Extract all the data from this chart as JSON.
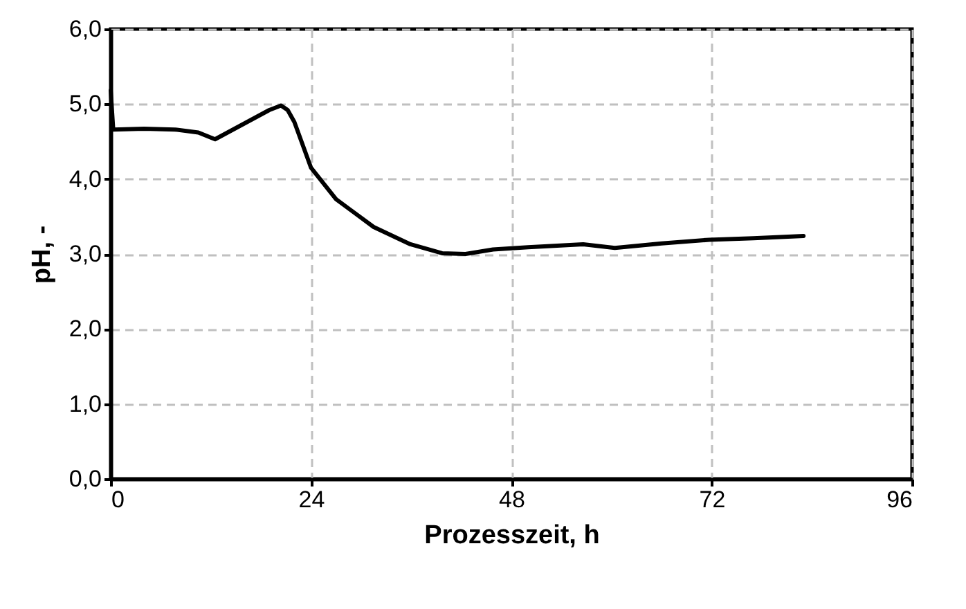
{
  "chart_data": {
    "type": "line",
    "xlabel": "Prozesszeit, h",
    "ylabel": "pH, -",
    "x": [
      0,
      0.3,
      4,
      7.7,
      10.5,
      12.5,
      15,
      17,
      19,
      20.4,
      21.2,
      22,
      24,
      27,
      31.5,
      35.9,
      39.7,
      42.5,
      45.8,
      50,
      56.6,
      60.4,
      66,
      71.7,
      77,
      83
    ],
    "series": [
      {
        "color": "#000000",
        "values": [
          5.18,
          4.66,
          4.67,
          4.66,
          4.62,
          4.53,
          4.68,
          4.8,
          4.92,
          4.98,
          4.92,
          4.76,
          4.15,
          3.73,
          3.36,
          3.13,
          3.01,
          3.0,
          3.06,
          3.09,
          3.13,
          3.08,
          3.14,
          3.19,
          3.21,
          3.24
        ]
      }
    ],
    "xlim": [
      0,
      96
    ],
    "xticks": [
      0,
      24,
      48,
      72,
      96
    ],
    "ylim": [
      0,
      6
    ],
    "yticks": [
      {
        "value": 0,
        "label": "0,0"
      },
      {
        "value": 1,
        "label": "1,0"
      },
      {
        "value": 2,
        "label": "2,0"
      },
      {
        "value": 3,
        "label": "3,0"
      },
      {
        "value": 4,
        "label": "4,0"
      },
      {
        "value": 5,
        "label": "5,0"
      },
      {
        "value": 6,
        "label": "6,0"
      }
    ],
    "grid": true,
    "line_style": "solid",
    "marker": "none"
  }
}
